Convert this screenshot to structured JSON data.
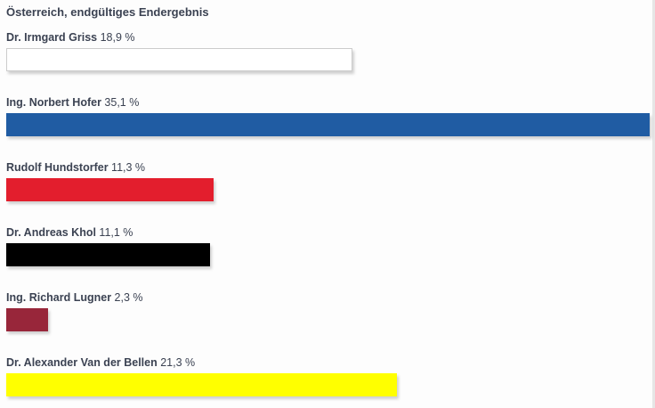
{
  "chart_data": {
    "type": "bar",
    "orientation": "horizontal",
    "title": "Österreich, endgültiges Endergebnis",
    "grid": false,
    "xlim": [
      0,
      35.1
    ],
    "bars": [
      {
        "name": "Dr. Irmgard Griss",
        "value": 18.9,
        "label": "18,9 %",
        "color": "#ffffff",
        "border": "#cccccc"
      },
      {
        "name": "Ing. Norbert Hofer",
        "value": 35.1,
        "label": "35,1 %",
        "color": "#205ca3"
      },
      {
        "name": "Rudolf Hundstorfer",
        "value": 11.3,
        "label": "11,3 %",
        "color": "#e31e2d"
      },
      {
        "name": "Dr. Andreas Khol",
        "value": 11.1,
        "label": "11,1 %",
        "color": "#000000"
      },
      {
        "name": "Ing. Richard Lugner",
        "value": 2.3,
        "label": "2,3 %",
        "color": "#98263a"
      },
      {
        "name": "Dr. Alexander Van der Bellen",
        "value": 21.3,
        "label": "21,3 %",
        "color": "#ffff00"
      }
    ]
  }
}
